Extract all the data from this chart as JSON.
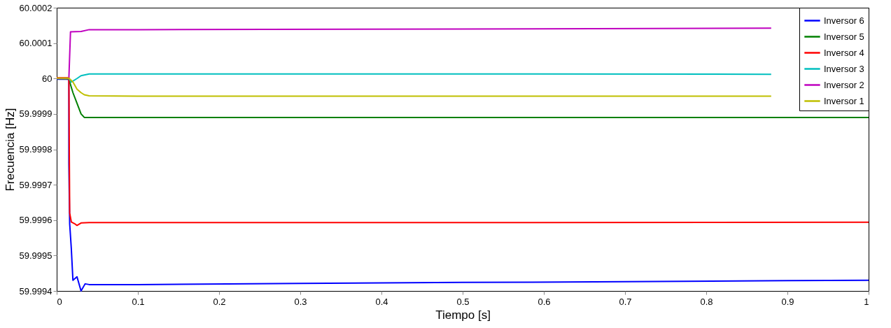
{
  "chart_data": {
    "type": "line",
    "xlabel": "Tiempo [s]",
    "ylabel": "Frecuencia [Hz]",
    "xlim": [
      0,
      1
    ],
    "xticks": [
      0,
      0.1,
      0.2,
      0.3,
      0.4,
      0.5,
      0.6,
      0.7,
      0.8,
      0.9,
      1
    ],
    "ylim": [
      59.9994,
      60.0002
    ],
    "yticks": [
      59.9994,
      59.9995,
      59.9996,
      59.9997,
      59.9998,
      59.9999,
      60,
      60.0001,
      60.0002
    ],
    "grid": false,
    "legend": "top right",
    "line_style": "solid",
    "marker": "none",
    "series": [
      {
        "name": "Inversor 6",
        "color": "#0000ff",
        "x": [
          0,
          0.015,
          0.015,
          0.016,
          0.018,
          0.02,
          0.025,
          0.03,
          0.035,
          0.04,
          0.1,
          0.3,
          0.5,
          0.7,
          0.9,
          1
        ],
        "values": [
          59.999998,
          59.999998,
          59.99976,
          59.99959,
          59.99952,
          59.99943,
          59.99944,
          59.9994,
          59.99942,
          59.999418,
          59.999418,
          59.999421,
          59.999424,
          59.999426,
          59.999429,
          59.99943
        ]
      },
      {
        "name": "Inversor 5",
        "color": "#008000",
        "x": [
          0,
          0.015,
          0.02,
          0.025,
          0.03,
          0.034,
          0.1,
          0.5,
          1
        ],
        "values": [
          60,
          59.999998,
          59.99996,
          59.99993,
          59.9999,
          59.99989,
          59.99989,
          59.99989,
          59.99989
        ]
      },
      {
        "name": "Inversor 4",
        "color": "#ff0000",
        "x": [
          0,
          0.015,
          0.016,
          0.018,
          0.022,
          0.025,
          0.03,
          0.04,
          0.1,
          0.5,
          1
        ],
        "values": [
          60.000002,
          60.000002,
          59.99962,
          59.999595,
          59.99959,
          59.999585,
          59.999592,
          59.999593,
          59.999593,
          59.999593,
          59.999594
        ]
      },
      {
        "name": "Inversor 3",
        "color": "#00bfbf",
        "x": [
          0,
          0.015,
          0.018,
          0.025,
          0.03,
          0.04,
          0.1,
          0.5,
          0.88
        ],
        "values": [
          60,
          60,
          59.99999,
          60,
          60.000008,
          60.000013,
          60.000013,
          60.000013,
          60.000012
        ]
      },
      {
        "name": "Inversor 2",
        "color": "#bf00bf",
        "x": [
          0,
          0.015,
          0.017,
          0.03,
          0.04,
          0.1,
          0.5,
          0.88
        ],
        "values": [
          60,
          60,
          60.000132,
          60.000133,
          60.000138,
          60.000138,
          60.00014,
          60.000142
        ]
      },
      {
        "name": "Inversor 1",
        "color": "#bfbf00",
        "x": [
          0,
          0.015,
          0.02,
          0.025,
          0.03,
          0.034,
          0.04,
          0.1,
          0.5,
          0.88
        ],
        "values": [
          60.000001,
          60.000001,
          59.99999,
          59.99997,
          59.99996,
          59.999954,
          59.999951,
          59.99995,
          59.99995,
          59.99995
        ]
      }
    ]
  }
}
